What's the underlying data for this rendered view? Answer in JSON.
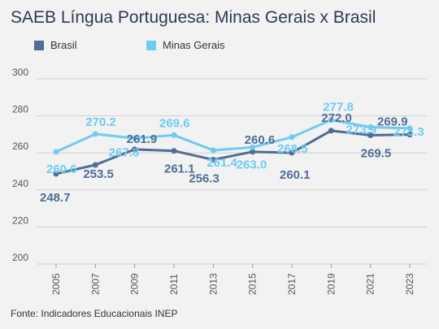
{
  "chart_data": {
    "type": "line",
    "title": "SAEB Língua Portuguesa: Minas Gerais x Brasil",
    "x": [
      "2005",
      "2007",
      "2009",
      "2011",
      "2013",
      "2015",
      "2017",
      "2019",
      "2021",
      "2023"
    ],
    "yticks": [
      "200",
      "220",
      "240",
      "260",
      "280",
      "300"
    ],
    "ylim": [
      200,
      300
    ],
    "grid": true,
    "legend_position": "top-left",
    "series": [
      {
        "name": "Brasil",
        "color": "#4f6d96",
        "values": [
          248.7,
          253.5,
          261.9,
          261.1,
          256.3,
          260.6,
          260.1,
          272.0,
          269.5,
          269.9
        ],
        "labels": [
          "248.7",
          "253.5",
          "261.9",
          "261.1",
          "256.3",
          "260.6",
          "260.1",
          "272.0",
          "269.5",
          "269.9"
        ]
      },
      {
        "name": "Minas Gerais",
        "color": "#6ecbf2",
        "values": [
          260.6,
          270.2,
          267.8,
          269.6,
          261.4,
          263.0,
          268.5,
          277.8,
          273.9,
          273.3
        ],
        "labels": [
          "260.6",
          "270.2",
          "267.8",
          "269.6",
          "261.4",
          "263.0",
          "268.5",
          "277.8",
          "273.9",
          "273.3"
        ]
      }
    ]
  },
  "footer": {
    "source": "Fonte: Indicadores Educacionais INEP"
  }
}
